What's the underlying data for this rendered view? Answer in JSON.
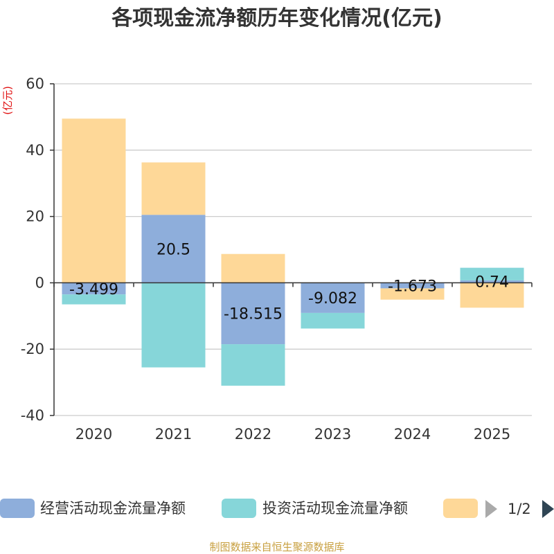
{
  "chart_data": {
    "type": "bar",
    "stacked": true,
    "title": "各项现金流净额历年变化情况(亿元)",
    "ylabel": "(亿元)",
    "categories": [
      "2020",
      "2021",
      "2022",
      "2023",
      "2024",
      "2025"
    ],
    "ylim": [
      -40,
      60
    ],
    "yticks": [
      60,
      40,
      20,
      0,
      -20,
      -40
    ],
    "series": [
      {
        "name": "经营活动现金流量净额",
        "color": "#8eaedb",
        "values": [
          -3.499,
          20.5,
          -18.515,
          -9.082,
          -1.673,
          0.74
        ],
        "labels": [
          "-3.499",
          "20.5",
          "-18.515",
          "-9.082",
          "-1.673",
          "0.74"
        ]
      },
      {
        "name": "投资活动现金流量净额",
        "color": "#86d6d9",
        "values": [
          -3.0,
          -25.5,
          -12.5,
          -4.7,
          0,
          3.8
        ]
      },
      {
        "name": "",
        "color": "#fed898",
        "values": [
          49.5,
          15.8,
          8.7,
          0,
          -3.4,
          -7.5
        ]
      }
    ],
    "legend": {
      "position": "bottom",
      "page": "1/2"
    }
  },
  "footer": {
    "source": "制图数据来自恒生聚源数据库"
  }
}
